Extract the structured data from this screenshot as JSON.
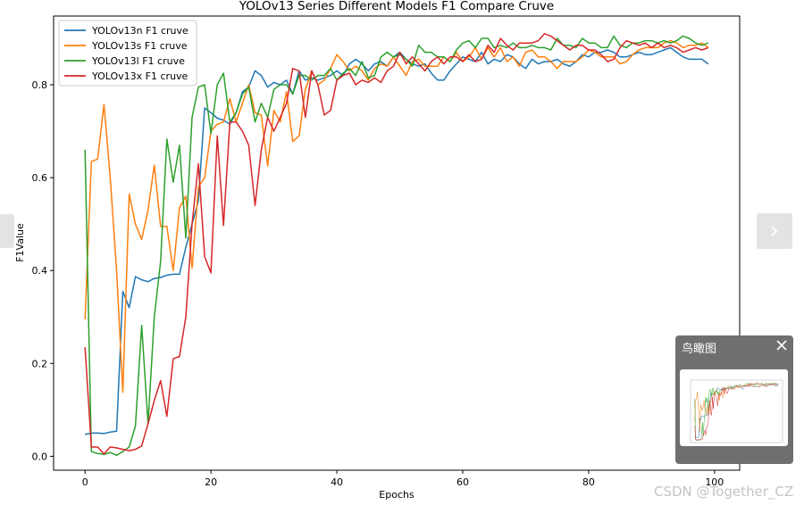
{
  "chart_data": {
    "type": "line",
    "title": "YOLOv13 Series Different Models F1 Compare Cruve",
    "xlabel": "Epochs",
    "ylabel": "F1Value",
    "xlim": [
      -5,
      104
    ],
    "ylim": [
      -0.03,
      0.948
    ],
    "xticks": [
      0,
      20,
      40,
      60,
      80,
      100
    ],
    "yticks": [
      0.0,
      0.2,
      0.4,
      0.6,
      0.8
    ],
    "grid": false,
    "legend_position": "top-left",
    "series": [
      {
        "name": "YOLOv13n F1 cruve",
        "color": "#1f77b4",
        "x": [
          0,
          1,
          2,
          3,
          4,
          5,
          6,
          7,
          8,
          9,
          10,
          11,
          12,
          13,
          14,
          15,
          16,
          17,
          18,
          19,
          20,
          21,
          22,
          23,
          24,
          25,
          26,
          27,
          28,
          29,
          30,
          31,
          32,
          33,
          34,
          35,
          36,
          37,
          38,
          39,
          40,
          41,
          42,
          43,
          44,
          45,
          46,
          47,
          48,
          49,
          50,
          51,
          52,
          53,
          54,
          55,
          56,
          57,
          58,
          59,
          60,
          61,
          62,
          63,
          64,
          65,
          66,
          67,
          68,
          69,
          70,
          71,
          72,
          73,
          74,
          75,
          76,
          77,
          78,
          79,
          80,
          81,
          82,
          83,
          84,
          85,
          86,
          87,
          88,
          89,
          90,
          91,
          92,
          93,
          94,
          95,
          96,
          97,
          98,
          99
        ],
        "values": [
          0.047,
          0.05,
          0.05,
          0.049,
          0.052,
          0.054,
          0.355,
          0.32,
          0.387,
          0.38,
          0.376,
          0.383,
          0.385,
          0.39,
          0.392,
          0.392,
          0.45,
          0.5,
          0.55,
          0.75,
          0.74,
          0.728,
          0.724,
          0.715,
          0.74,
          0.785,
          0.795,
          0.83,
          0.82,
          0.795,
          0.805,
          0.8,
          0.81,
          0.78,
          0.83,
          0.81,
          0.815,
          0.81,
          0.815,
          0.82,
          0.83,
          0.82,
          0.845,
          0.855,
          0.845,
          0.83,
          0.845,
          0.85,
          0.84,
          0.86,
          0.87,
          0.855,
          0.845,
          0.84,
          0.845,
          0.825,
          0.81,
          0.81,
          0.83,
          0.845,
          0.86,
          0.855,
          0.85,
          0.87,
          0.845,
          0.855,
          0.85,
          0.865,
          0.86,
          0.845,
          0.835,
          0.855,
          0.845,
          0.85,
          0.85,
          0.855,
          0.845,
          0.84,
          0.85,
          0.865,
          0.86,
          0.87,
          0.87,
          0.875,
          0.87,
          0.86,
          0.86,
          0.865,
          0.87,
          0.865,
          0.865,
          0.87,
          0.875,
          0.88,
          0.87,
          0.86,
          0.855,
          0.855,
          0.855,
          0.845
        ]
      },
      {
        "name": "YOLOv13s F1 cruve",
        "color": "#ff7f0e",
        "x": [
          0,
          1,
          2,
          3,
          4,
          5,
          6,
          7,
          8,
          9,
          10,
          11,
          12,
          13,
          14,
          15,
          16,
          17,
          18,
          19,
          20,
          21,
          22,
          23,
          24,
          25,
          26,
          27,
          28,
          29,
          30,
          31,
          32,
          33,
          34,
          35,
          36,
          37,
          38,
          39,
          40,
          41,
          42,
          43,
          44,
          45,
          46,
          47,
          48,
          49,
          50,
          51,
          52,
          53,
          54,
          55,
          56,
          57,
          58,
          59,
          60,
          61,
          62,
          63,
          64,
          65,
          66,
          67,
          68,
          69,
          70,
          71,
          72,
          73,
          74,
          75,
          76,
          77,
          78,
          79,
          80,
          81,
          82,
          83,
          84,
          85,
          86,
          87,
          88,
          89,
          90,
          91,
          92,
          93,
          94,
          95,
          96,
          97,
          98,
          99
        ],
        "values": [
          0.295,
          0.635,
          0.64,
          0.758,
          0.6,
          0.4,
          0.138,
          0.565,
          0.5,
          0.467,
          0.53,
          0.627,
          0.495,
          0.495,
          0.4,
          0.535,
          0.56,
          0.405,
          0.58,
          0.6,
          0.7,
          0.715,
          0.72,
          0.77,
          0.72,
          0.76,
          0.8,
          0.74,
          0.735,
          0.625,
          0.745,
          0.72,
          0.785,
          0.678,
          0.69,
          0.79,
          0.83,
          0.8,
          0.81,
          0.835,
          0.865,
          0.85,
          0.83,
          0.84,
          0.83,
          0.81,
          0.835,
          0.845,
          0.84,
          0.86,
          0.84,
          0.82,
          0.85,
          0.855,
          0.84,
          0.84,
          0.84,
          0.86,
          0.85,
          0.87,
          0.85,
          0.86,
          0.88,
          0.855,
          0.88,
          0.86,
          0.88,
          0.85,
          0.86,
          0.84,
          0.87,
          0.875,
          0.86,
          0.86,
          0.85,
          0.835,
          0.85,
          0.85,
          0.85,
          0.86,
          0.875,
          0.87,
          0.86,
          0.86,
          0.86,
          0.845,
          0.85,
          0.865,
          0.875,
          0.88,
          0.88,
          0.88,
          0.89,
          0.895,
          0.89,
          0.88,
          0.885,
          0.885,
          0.89,
          0.88
        ]
      },
      {
        "name": "YOLOv13l F1 cruve",
        "color": "#2ca02c",
        "x": [
          0,
          1,
          2,
          3,
          4,
          5,
          6,
          7,
          8,
          9,
          10,
          11,
          12,
          13,
          14,
          15,
          16,
          17,
          18,
          19,
          20,
          21,
          22,
          23,
          24,
          25,
          26,
          27,
          28,
          29,
          30,
          31,
          32,
          33,
          34,
          35,
          36,
          37,
          38,
          39,
          40,
          41,
          42,
          43,
          44,
          45,
          46,
          47,
          48,
          49,
          50,
          51,
          52,
          53,
          54,
          55,
          56,
          57,
          58,
          59,
          60,
          61,
          62,
          63,
          64,
          65,
          66,
          67,
          68,
          69,
          70,
          71,
          72,
          73,
          74,
          75,
          76,
          77,
          78,
          79,
          80,
          81,
          82,
          83,
          84,
          85,
          86,
          87,
          88,
          89,
          90,
          91,
          92,
          93,
          94,
          95,
          96,
          97,
          98,
          99
        ],
        "values": [
          0.66,
          0.01,
          0.006,
          0.004,
          0.008,
          0.002,
          0.01,
          0.02,
          0.065,
          0.282,
          0.07,
          0.3,
          0.42,
          0.683,
          0.59,
          0.67,
          0.47,
          0.73,
          0.795,
          0.8,
          0.695,
          0.8,
          0.825,
          0.72,
          0.74,
          0.78,
          0.795,
          0.72,
          0.76,
          0.73,
          0.79,
          0.8,
          0.8,
          0.78,
          0.82,
          0.82,
          0.81,
          0.82,
          0.82,
          0.835,
          0.81,
          0.825,
          0.835,
          0.82,
          0.85,
          0.815,
          0.82,
          0.86,
          0.87,
          0.86,
          0.865,
          0.855,
          0.84,
          0.885,
          0.87,
          0.87,
          0.86,
          0.86,
          0.85,
          0.875,
          0.89,
          0.895,
          0.88,
          0.9,
          0.9,
          0.88,
          0.885,
          0.88,
          0.89,
          0.88,
          0.88,
          0.885,
          0.88,
          0.88,
          0.875,
          0.9,
          0.885,
          0.885,
          0.88,
          0.9,
          0.89,
          0.89,
          0.88,
          0.88,
          0.905,
          0.885,
          0.88,
          0.89,
          0.89,
          0.895,
          0.895,
          0.89,
          0.895,
          0.89,
          0.895,
          0.905,
          0.9,
          0.89,
          0.885,
          0.89
        ]
      },
      {
        "name": "YOLOv13x F1 cruve",
        "color": "#d62728",
        "x": [
          0,
          1,
          2,
          3,
          4,
          5,
          6,
          7,
          8,
          9,
          10,
          11,
          12,
          13,
          14,
          15,
          16,
          17,
          18,
          19,
          20,
          21,
          22,
          23,
          24,
          25,
          26,
          27,
          28,
          29,
          30,
          31,
          32,
          33,
          34,
          35,
          36,
          37,
          38,
          39,
          40,
          41,
          42,
          43,
          44,
          45,
          46,
          47,
          48,
          49,
          50,
          51,
          52,
          53,
          54,
          55,
          56,
          57,
          58,
          59,
          60,
          61,
          62,
          63,
          64,
          65,
          66,
          67,
          68,
          69,
          70,
          71,
          72,
          73,
          74,
          75,
          76,
          77,
          78,
          79,
          80,
          81,
          82,
          83,
          84,
          85,
          86,
          87,
          88,
          89,
          90,
          91,
          92,
          93,
          94,
          95,
          96,
          97,
          98,
          99
        ],
        "values": [
          0.235,
          0.02,
          0.02,
          0.005,
          0.02,
          0.018,
          0.015,
          0.012,
          0.015,
          0.022,
          0.07,
          0.12,
          0.163,
          0.086,
          0.21,
          0.215,
          0.3,
          0.5,
          0.63,
          0.43,
          0.395,
          0.69,
          0.497,
          0.72,
          0.72,
          0.7,
          0.67,
          0.54,
          0.66,
          0.73,
          0.7,
          0.73,
          0.76,
          0.835,
          0.83,
          0.73,
          0.83,
          0.8,
          0.735,
          0.745,
          0.81,
          0.82,
          0.825,
          0.8,
          0.81,
          0.805,
          0.815,
          0.805,
          0.83,
          0.84,
          0.87,
          0.845,
          0.86,
          0.845,
          0.83,
          0.85,
          0.86,
          0.845,
          0.86,
          0.86,
          0.85,
          0.865,
          0.85,
          0.855,
          0.885,
          0.87,
          0.9,
          0.885,
          0.875,
          0.89,
          0.89,
          0.89,
          0.895,
          0.91,
          0.905,
          0.895,
          0.885,
          0.875,
          0.885,
          0.885,
          0.875,
          0.875,
          0.865,
          0.85,
          0.855,
          0.88,
          0.895,
          0.89,
          0.885,
          0.89,
          0.88,
          0.89,
          0.88,
          0.885,
          0.88,
          0.87,
          0.875,
          0.88,
          0.875,
          0.88
        ]
      }
    ]
  },
  "viewer": {
    "prev_icon": "chevron-left-icon",
    "next_icon": "chevron-right-icon",
    "minimap_title": "鸟瞰图",
    "close_icon": "close-icon",
    "watermark": "CSDN @Together_CZ"
  }
}
